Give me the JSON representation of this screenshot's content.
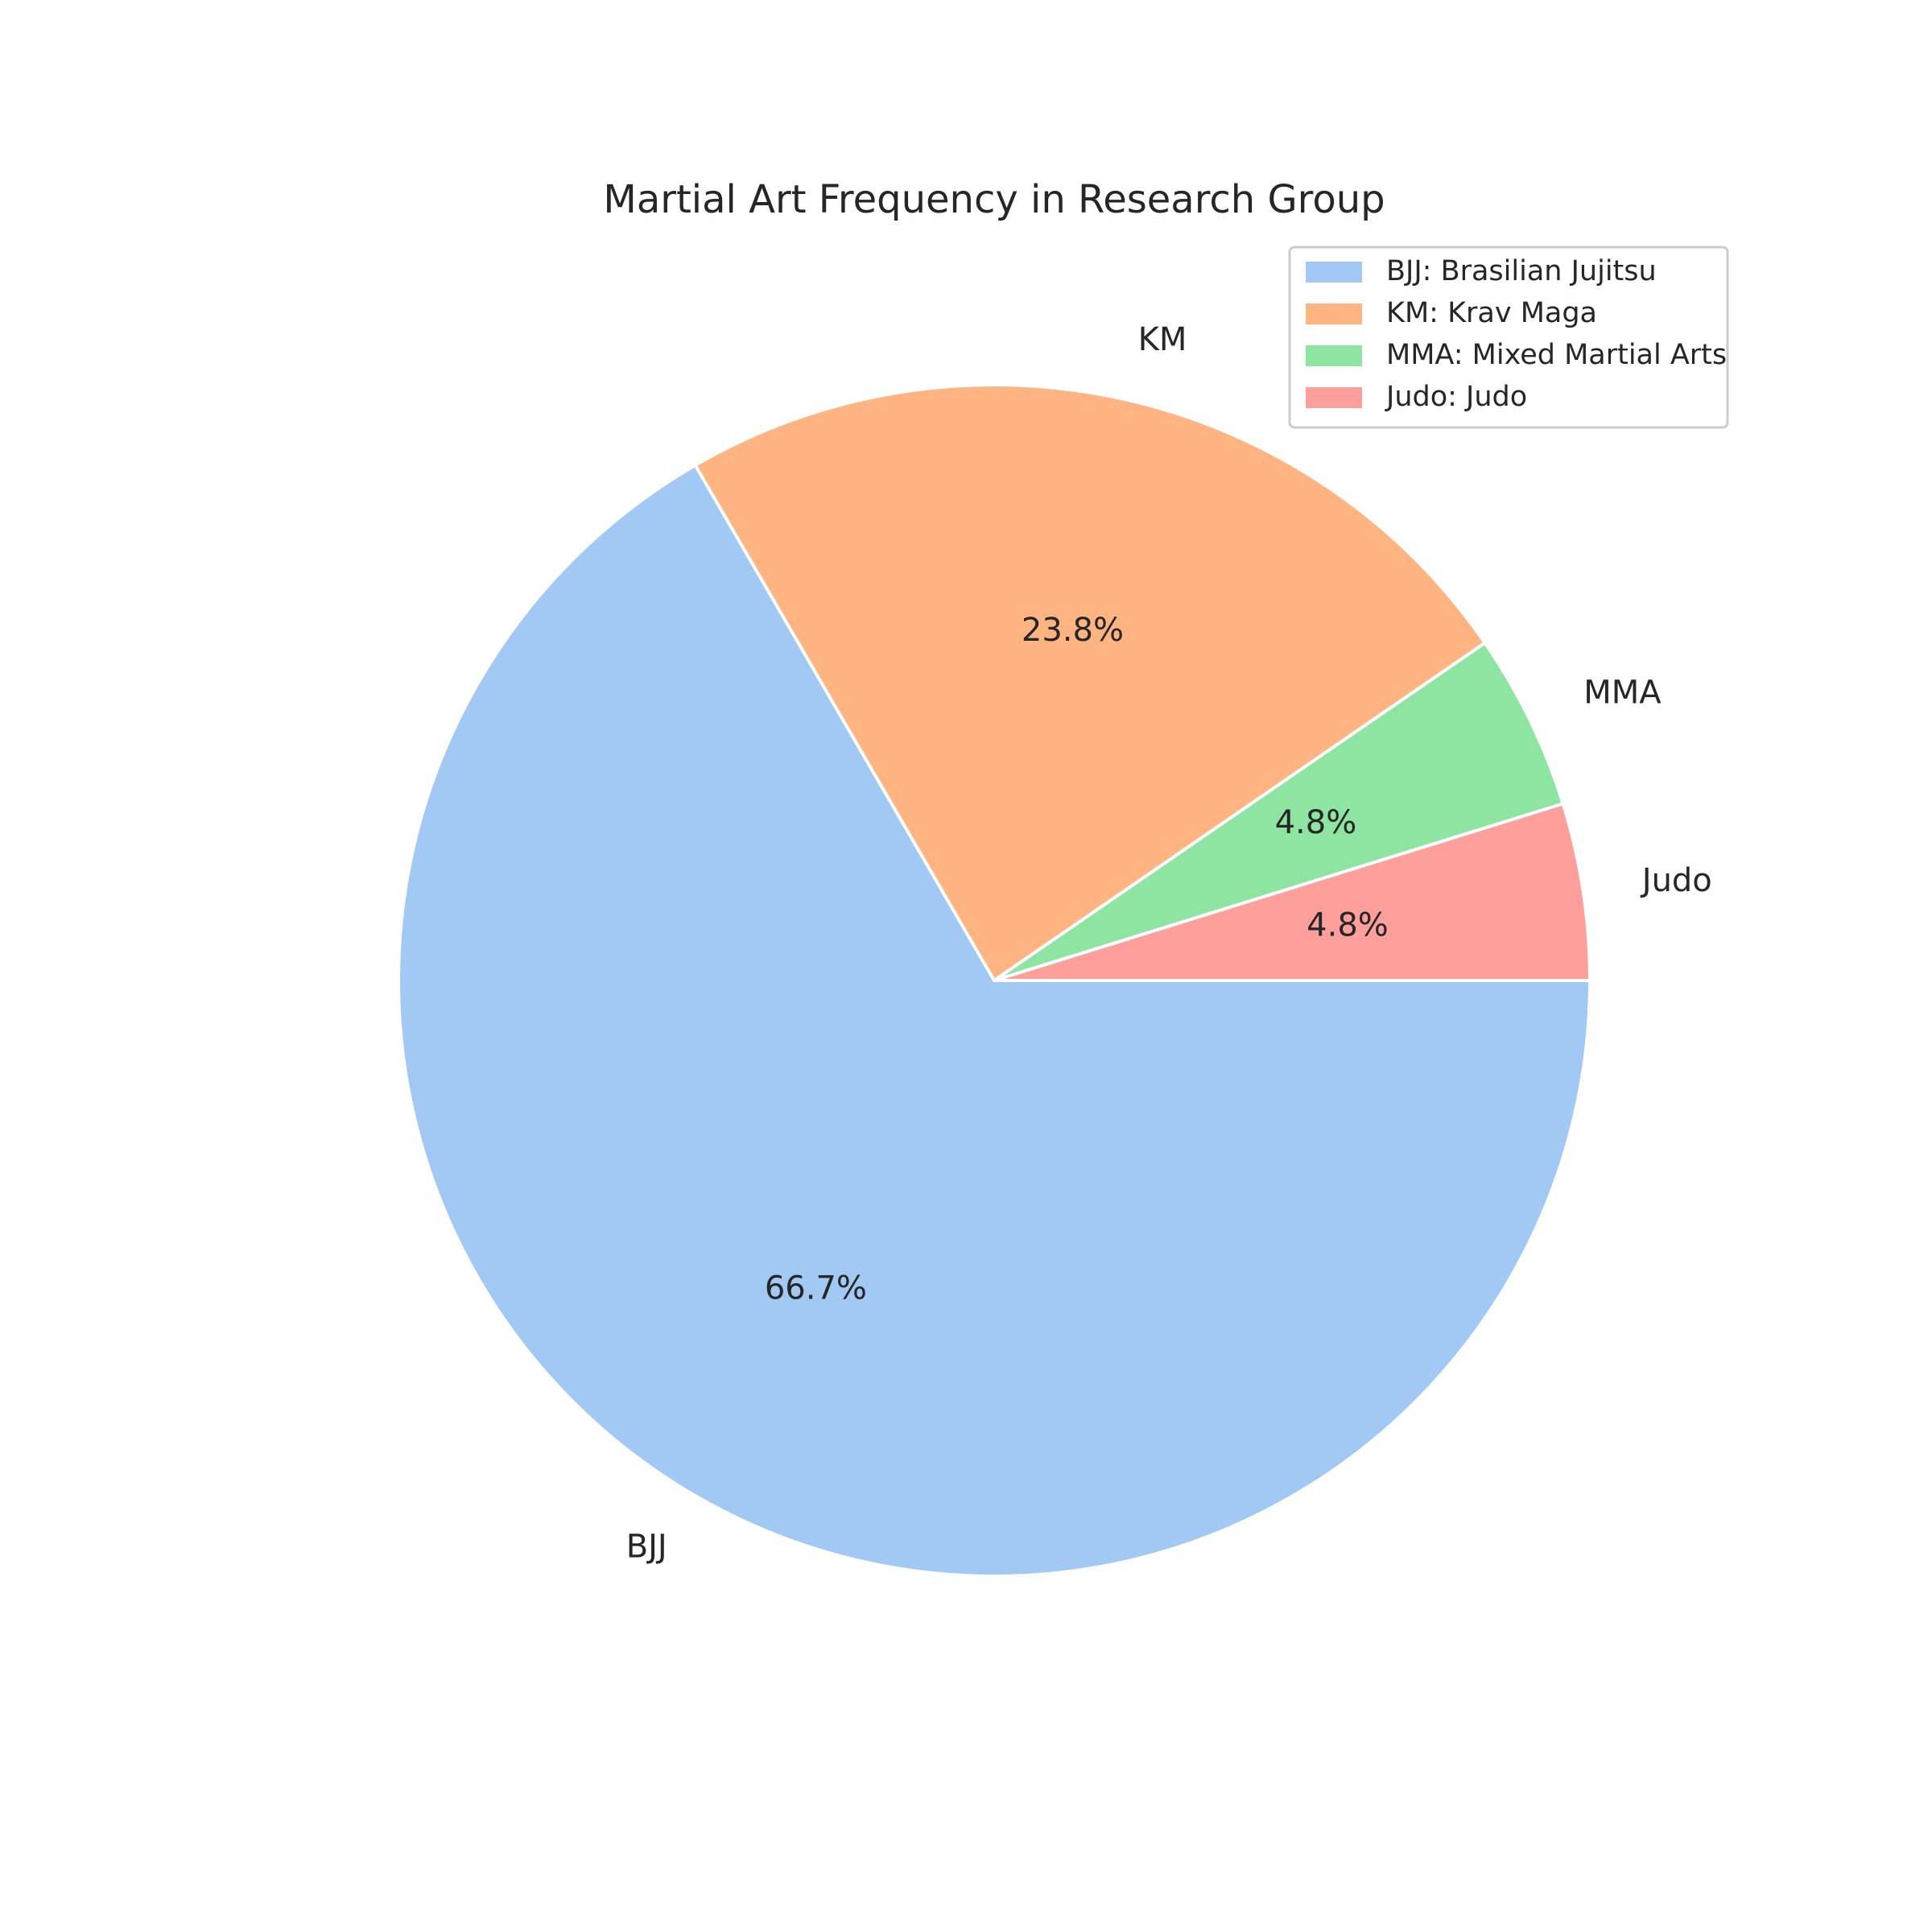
{
  "chart_data": {
    "type": "pie",
    "title": "Martial Art Frequency in Research Group",
    "categories": [
      "BJJ",
      "KM",
      "MMA",
      "Judo"
    ],
    "values": [
      66.7,
      23.8,
      4.8,
      4.8
    ],
    "percent_labels": [
      "66.7%",
      "23.8%",
      "4.8%",
      "4.8%"
    ],
    "colors": [
      "#a1c9f4",
      "#ffb482",
      "#8de5a1",
      "#ff9f9b"
    ],
    "start_angle_deg": 0,
    "direction": "clockwise",
    "legend": {
      "placement": "top-right",
      "entries": [
        "BJJ: Brasilian Jujitsu",
        "KM: Krav Maga",
        "MMA: Mixed Martial Arts",
        "Judo: Judo"
      ]
    }
  }
}
